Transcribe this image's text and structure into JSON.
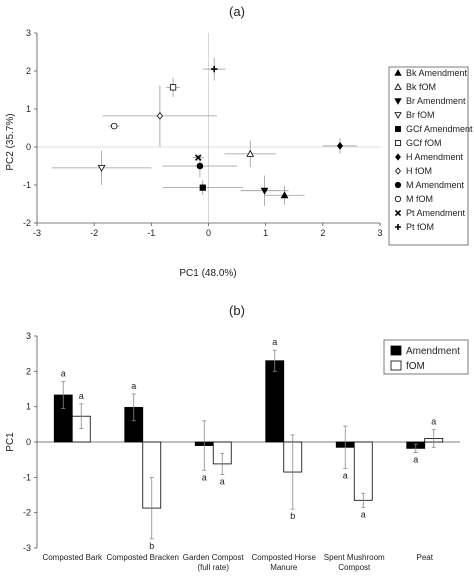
{
  "chart_data": [
    {
      "panel_label": "(a)",
      "type": "scatter",
      "xlabel": "PC1 (48.0%)",
      "ylabel": "PC2 (35.7%)",
      "xlim": [
        -3,
        3
      ],
      "ylim": [
        -2,
        3
      ],
      "x_ticks": [
        "-3",
        "-2",
        "-1",
        "0",
        "1",
        "2",
        "3"
      ],
      "y_ticks": [
        "-2",
        "-1",
        "0",
        "1",
        "2",
        "3"
      ],
      "legend_position": "right",
      "grid": false,
      "points": [
        {
          "label": "Bk Amendment",
          "marker": "triangle-up",
          "filled": true,
          "x": 1.33,
          "y": -1.27,
          "xerr": 0.35,
          "yerr": 0.25
        },
        {
          "label": "Bk fOM",
          "marker": "triangle-up",
          "filled": false,
          "x": 0.73,
          "y": -0.18,
          "xerr": 0.45,
          "yerr": 0.35
        },
        {
          "label": "Br Amendment",
          "marker": "triangle-down",
          "filled": true,
          "x": 0.98,
          "y": -1.15,
          "xerr": 0.42,
          "yerr": 0.4
        },
        {
          "label": "Br fOM",
          "marker": "triangle-down",
          "filled": false,
          "x": -1.87,
          "y": -0.55,
          "xerr": 0.87,
          "yerr": 0.45
        },
        {
          "label": "GCf Amendment",
          "marker": "square",
          "filled": true,
          "x": -0.1,
          "y": -1.07,
          "xerr": 0.7,
          "yerr": 0.2
        },
        {
          "label": "GCf fOM",
          "marker": "square",
          "filled": false,
          "x": -0.62,
          "y": 1.57,
          "xerr": 0.12,
          "yerr": 0.25
        },
        {
          "label": "H Amendment",
          "marker": "diamond",
          "filled": true,
          "x": 2.3,
          "y": 0.03,
          "xerr": 0.3,
          "yerr": 0.2
        },
        {
          "label": "H fOM",
          "marker": "diamond",
          "filled": false,
          "x": -0.85,
          "y": 0.82,
          "xerr": 1.0,
          "yerr": 0.8
        },
        {
          "label": "M Amendment",
          "marker": "circle",
          "filled": true,
          "x": -0.15,
          "y": -0.5,
          "xerr": 0.65,
          "yerr": 0.3
        },
        {
          "label": "M fOM",
          "marker": "circle",
          "filled": false,
          "x": -1.65,
          "y": 0.55,
          "xerr": 0.1,
          "yerr": 0.05
        },
        {
          "label": "Pt Amendment",
          "marker": "x",
          "filled": true,
          "x": -0.18,
          "y": -0.28,
          "xerr": 0.1,
          "yerr": 0.08
        },
        {
          "label": "Pt fOM",
          "marker": "plus",
          "filled": true,
          "x": 0.1,
          "y": 2.05,
          "xerr": 0.2,
          "yerr": 0.3
        }
      ]
    },
    {
      "panel_label": "(b)",
      "type": "bar",
      "ylabel": "PC1",
      "ylim": [
        -3,
        3
      ],
      "y_ticks": [
        "-3",
        "-2",
        "-1",
        "0",
        "1",
        "2",
        "3"
      ],
      "legend_position": "top-right",
      "grid": false,
      "categories": [
        [
          "Composted Bark"
        ],
        [
          "Composted Bracken"
        ],
        [
          "Garden Compost",
          "(full rate)"
        ],
        [
          "Composted Horse",
          "Manure"
        ],
        [
          "Spent Mushroom",
          "Compost"
        ],
        [
          "Peat"
        ]
      ],
      "series": [
        {
          "name": "Amendment",
          "fill": "#000000",
          "values": [
            1.33,
            0.98,
            -0.1,
            2.3,
            -0.15,
            -0.18
          ],
          "errors": [
            0.38,
            0.38,
            0.7,
            0.3,
            0.6,
            0.12
          ],
          "letters": [
            "a",
            "a",
            "a",
            "a",
            "a",
            "a"
          ]
        },
        {
          "name": "fOM",
          "fill": "#ffffff",
          "values": [
            0.73,
            -1.87,
            -0.62,
            -0.85,
            -1.65,
            0.1
          ],
          "errors": [
            0.35,
            0.87,
            0.3,
            1.05,
            0.2,
            0.25
          ],
          "letters": [
            "a",
            "b",
            "a",
            "b",
            "a",
            "a"
          ]
        }
      ]
    }
  ]
}
